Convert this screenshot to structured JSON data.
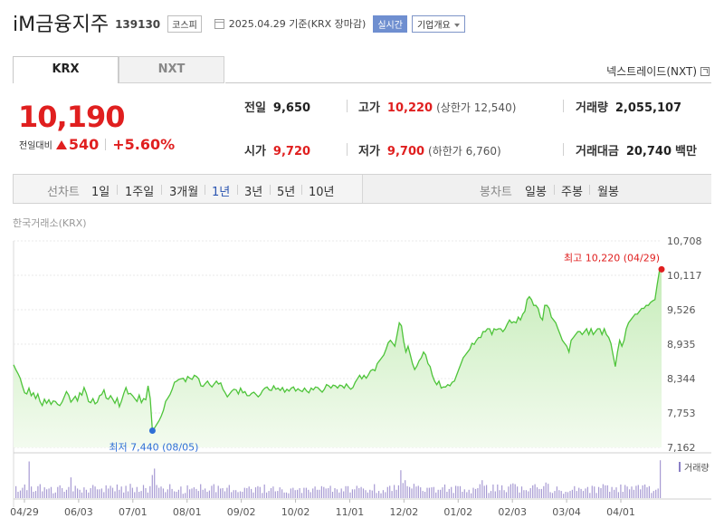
{
  "header": {
    "name": "iM금융지주",
    "code": "139130",
    "market": "코스피",
    "date_text": "2025.04.29  기준(KRX 장마감)",
    "realtime": "실시간",
    "company_info": "기업개요"
  },
  "tabs": {
    "krx": "KRX",
    "nxt": "NXT"
  },
  "nxt_link": "넥스트레이드(NXT)",
  "price": {
    "current": "10,190",
    "change_label": "전일대비",
    "change": "540",
    "change_pct": "+5.60%"
  },
  "stats": {
    "prev_close": {
      "label": "전일",
      "value": "9,650"
    },
    "open": {
      "label": "시가",
      "value": "9,720"
    },
    "high": {
      "label": "고가",
      "value": "10,220",
      "sub": "(상한가 12,540)"
    },
    "low": {
      "label": "저가",
      "value": "9,700",
      "sub": "(하한가 6,760)"
    },
    "volume": {
      "label": "거래량",
      "value": "2,055,107"
    },
    "amount": {
      "label": "거래대금",
      "value": "20,740",
      "unit": "백만"
    }
  },
  "period_bar": {
    "line_label": "선차트",
    "line_periods": [
      "1일",
      "1주일",
      "3개월",
      "1년",
      "3년",
      "5년",
      "10년"
    ],
    "selected": "1년",
    "candle_label": "봉차트",
    "candle_periods": [
      "일봉",
      "주봉",
      "월봉"
    ]
  },
  "chart_data": {
    "type": "area",
    "source": "한국거래소(KRX)",
    "y_ticks": [
      "10,708",
      "10,117",
      "9,526",
      "8,935",
      "8,344",
      "7,753",
      "7,162"
    ],
    "ylim": [
      7162,
      10708
    ],
    "x_ticks": [
      "04/29",
      "06/03",
      "07/01",
      "08/01",
      "09/02",
      "10/02",
      "11/01",
      "12/02",
      "01/02",
      "02/03",
      "03/04",
      "04/01"
    ],
    "volume_label": "거래량",
    "high_annotation": "최고 10,220 (04/29)",
    "low_annotation": "최저 7,440 (08/05)",
    "series_color": "#4ec43a",
    "high_color": "#e01f1f",
    "low_color": "#2f6fd6",
    "price": [
      8580,
      8500,
      8430,
      8350,
      8220,
      8100,
      8080,
      8180,
      8050,
      8100,
      8000,
      8080,
      7950,
      7880,
      7990,
      7920,
      7980,
      7900,
      7960,
      7950,
      7900,
      7880,
      7940,
      8030,
      8120,
      8060,
      7940,
      7990,
      8040,
      7960,
      8100,
      8060,
      8190,
      8090,
      7950,
      7930,
      8000,
      7910,
      7940,
      8050,
      8070,
      8150,
      8010,
      7990,
      8050,
      7990,
      7920,
      8010,
      7860,
      7960,
      8090,
      8190,
      8080,
      8090,
      8050,
      8000,
      7950,
      8060,
      7930,
      8000,
      7980,
      8220,
      8000,
      7450,
      7500,
      7560,
      7620,
      7700,
      7800,
      7950,
      8010,
      8070,
      8160,
      8280,
      8300,
      8330,
      8340,
      8350,
      8290,
      8380,
      8350,
      8330,
      8400,
      8380,
      8340,
      8220,
      8210,
      8260,
      8300,
      8240,
      8200,
      8250,
      8300,
      8250,
      8270,
      8160,
      8100,
      8030,
      8080,
      8130,
      8160,
      8150,
      8080,
      8180,
      8100,
      8120,
      8050,
      8050,
      8090,
      8110,
      8070,
      8030,
      8070,
      8140,
      8180,
      8200,
      8150,
      8140,
      8220,
      8160,
      8180,
      8140,
      8190,
      8110,
      8160,
      8130,
      8180,
      8200,
      8130,
      8170,
      8140,
      8120,
      8180,
      8130,
      8100,
      8180,
      8150,
      8200,
      8190,
      8150,
      8110,
      8160,
      8240,
      8220,
      8180,
      8230,
      8220,
      8180,
      8230,
      8220,
      8180,
      8250,
      8200,
      8160,
      8190,
      8280,
      8340,
      8400,
      8340,
      8400,
      8350,
      8410,
      8480,
      8500,
      8480,
      8600,
      8650,
      8700,
      8750,
      8850,
      8960,
      9000,
      8950,
      8900,
      9100,
      9300,
      9250,
      8980,
      8800,
      8900,
      8750,
      8600,
      8500,
      8560,
      8650,
      8700,
      8800,
      8750,
      8600,
      8550,
      8400,
      8300,
      8240,
      8300,
      8180,
      8200,
      8200,
      8240,
      8220,
      8280,
      8300,
      8400,
      8500,
      8600,
      8700,
      8750,
      8800,
      8850,
      8950,
      8930,
      9000,
      9050,
      9050,
      9150,
      9150,
      9200,
      9200,
      9100,
      9200,
      9180,
      9200,
      9200,
      9150,
      9200,
      9280,
      9350,
      9300,
      9320,
      9300,
      9400,
      9350,
      9450,
      9500,
      9700,
      9750,
      9700,
      9600,
      9600,
      9550,
      9400,
      9350,
      9600,
      9600,
      9550,
      9400,
      9350,
      9300,
      9200,
      9100,
      9000,
      8950,
      8900,
      8800,
      9000,
      9050,
      9100,
      9150,
      9150,
      9100,
      9150,
      9200,
      9100,
      9200,
      9100,
      9150,
      9200,
      9200,
      9100,
      9200,
      9100,
      9050,
      8950,
      8750,
      8550,
      8800,
      9000,
      8900,
      9000,
      9200,
      9300,
      9350,
      9400,
      9450,
      9450,
      9500,
      9550,
      9550,
      9600,
      9600,
      9650,
      9680,
      9700,
      9950,
      10190,
      10220
    ],
    "volume": [
      0.3,
      0.16,
      0.19,
      0.26,
      0.34,
      0.2,
      0.92,
      0.29,
      0.16,
      0.18,
      0.3,
      0.35,
      0.17,
      0.27,
      0.22,
      0.24,
      0.28,
      0.12,
      0.14,
      0.28,
      0.32,
      0.25,
      0.16,
      0.21,
      0.28,
      0.52,
      0.17,
      0.31,
      0.24,
      0.21,
      0.14,
      0.27,
      0.21,
      0.14,
      0.25,
      0.33,
      0.29,
      0.22,
      0.22,
      0.24,
      0.15,
      0.32,
      0.24,
      0.31,
      0.26,
      0.17,
      0.34,
      0.21,
      0.29,
      0.14,
      0.31,
      0.17,
      0.36,
      0.26,
      0.15,
      0.28,
      0.16,
      0.18,
      0.33,
      0.25,
      0.14,
      0.3,
      0.58,
      0.74,
      0.33,
      0.26,
      0.29,
      0.24,
      0.15,
      0.22,
      0.35,
      0.23,
      0.17,
      0.16,
      0.21,
      0.29,
      0.11,
      0.13,
      0.32,
      0.22,
      0.24,
      0.27,
      0.23,
      0.18,
      0.35,
      0.21,
      0.24,
      0.16,
      0.19,
      0.31,
      0.35,
      0.15,
      0.31,
      0.24,
      0.25,
      0.17,
      0.26,
      0.33,
      0.15,
      0.2,
      0.2,
      0.15,
      0.17,
      0.16,
      0.26,
      0.25,
      0.29,
      0.23,
      0.14,
      0.27,
      0.3,
      0.28,
      0.13,
      0.34,
      0.14,
      0.18,
      0.25,
      0.29,
      0.17,
      0.18,
      0.27,
      0.22,
      0.14,
      0.14,
      0.12,
      0.24,
      0.26,
      0.2,
      0.21,
      0.25,
      0.13,
      0.26,
      0.26,
      0.21,
      0.15,
      0.24,
      0.29,
      0.21,
      0.21,
      0.3,
      0.28,
      0.24,
      0.25,
      0.31,
      0.16,
      0.25,
      0.22,
      0.14,
      0.24,
      0.17,
      0.3,
      0.3,
      0.14,
      0.22,
      0.22,
      0.31,
      0.25,
      0.28,
      0.24,
      0.2,
      0.14,
      0.21,
      0.19,
      0.35,
      0.13,
      0.18,
      0.12,
      0.2,
      0.15,
      0.28,
      0.31,
      0.18,
      0.33,
      0.21,
      0.32,
      0.7,
      0.38,
      0.45,
      0.3,
      0.28,
      0.24,
      0.36,
      0.29,
      0.31,
      0.27,
      0.18,
      0.16,
      0.26,
      0.26,
      0.27,
      0.28,
      0.14,
      0.21,
      0.21,
      0.27,
      0.34,
      0.16,
      0.23,
      0.28,
      0.13,
      0.31,
      0.3,
      0.3,
      0.16,
      0.22,
      0.15,
      0.21,
      0.12,
      0.26,
      0.23,
      0.25,
      0.35,
      0.45,
      0.31,
      0.33,
      0.13,
      0.18,
      0.34,
      0.17,
      0.34,
      0.2,
      0.32,
      0.2,
      0.15,
      0.29,
      0.35,
      0.37,
      0.35,
      0.29,
      0.14,
      0.29,
      0.2,
      0.2,
      0.17,
      0.25,
      0.32,
      0.35,
      0.27,
      0.23,
      0.23,
      0.3,
      0.39,
      0.36,
      0.15,
      0.13,
      0.18,
      0.29,
      0.2,
      0.18,
      0.11,
      0.16,
      0.15,
      0.18,
      0.21,
      0.3,
      0.18,
      0.26,
      0.23,
      0.18,
      0.24,
      0.28,
      0.13,
      0.31,
      0.29,
      0.13,
      0.28,
      0.25,
      0.35,
      0.32,
      0.32,
      0.16,
      0.28,
      0.21,
      0.27,
      0.15,
      0.34,
      0.16,
      0.33,
      0.29,
      0.22,
      0.29,
      0.21,
      0.31,
      0.33,
      0.22,
      0.32,
      0.34,
      0.27,
      0.3,
      0.13,
      0.18,
      0.21,
      0.24,
      0.95
    ]
  }
}
